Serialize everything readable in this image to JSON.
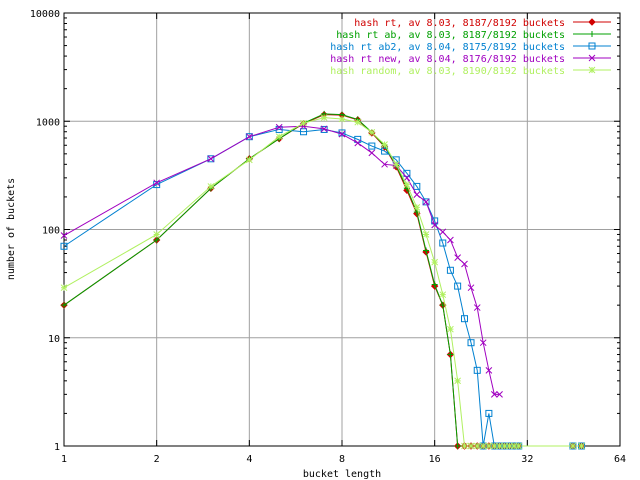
{
  "chart_data": {
    "type": "line",
    "title": "",
    "xlabel": "bucket length",
    "ylabel": "number of buckets",
    "x_scale": "log2",
    "y_scale": "log10",
    "xlim": [
      1,
      64
    ],
    "ylim": [
      1,
      10000
    ],
    "x_ticks": [
      1,
      2,
      4,
      8,
      16,
      32,
      64
    ],
    "x_tick_labels": [
      "1",
      "2",
      "4",
      "8",
      "16",
      "32",
      "64"
    ],
    "y_ticks": [
      1,
      10,
      100,
      1000,
      10000
    ],
    "y_tick_labels": [
      "1",
      "10",
      "100",
      "1000",
      "10000"
    ],
    "grid": true,
    "legend_position": "top-right",
    "series": [
      {
        "name": "hash rt, av 8.03, 8187/8192 buckets",
        "color": "#d00000",
        "marker": "diamond",
        "x": [
          1,
          2,
          3,
          4,
          5,
          6,
          7,
          8,
          9,
          10,
          11,
          12,
          13,
          14,
          15,
          16,
          17,
          18,
          19,
          20,
          21,
          22,
          23,
          24,
          25,
          26,
          27,
          28,
          29,
          30,
          45,
          48
        ],
        "y": [
          20,
          80,
          240,
          450,
          690,
          950,
          1150,
          1140,
          1030,
          780,
          580,
          380,
          230,
          140,
          62,
          30,
          20,
          7,
          1,
          1,
          1,
          1,
          1,
          1,
          1,
          1,
          1,
          1,
          1,
          1,
          1,
          1
        ]
      },
      {
        "name": "hash rt ab, av 8.03, 8187/8192 buckets",
        "color": "#00a000",
        "marker": "plus",
        "x": [
          1,
          2,
          3,
          4,
          5,
          6,
          7,
          8,
          9,
          10,
          11,
          12,
          13,
          14,
          15,
          16,
          17,
          18,
          19,
          20,
          21,
          22,
          23,
          24,
          25,
          26,
          27,
          28,
          29,
          30,
          45,
          48
        ],
        "y": [
          20,
          80,
          240,
          450,
          690,
          960,
          1170,
          1150,
          1040,
          790,
          590,
          390,
          240,
          145,
          64,
          31,
          20,
          7,
          1,
          1,
          1,
          1,
          1,
          1,
          1,
          1,
          1,
          1,
          1,
          1,
          1,
          1
        ]
      },
      {
        "name": "hash rt ab2, av 8.04, 8175/8192 buckets",
        "color": "#0080d0",
        "marker": "square",
        "x": [
          1,
          2,
          3,
          4,
          5,
          6,
          7,
          8,
          9,
          10,
          11,
          12,
          13,
          14,
          15,
          16,
          17,
          18,
          19,
          20,
          21,
          22,
          23,
          24,
          25,
          26,
          27,
          28,
          29,
          30,
          45,
          48
        ],
        "y": [
          70,
          260,
          450,
          720,
          840,
          800,
          840,
          780,
          680,
          590,
          530,
          440,
          330,
          250,
          180,
          120,
          75,
          42,
          30,
          15,
          9,
          5,
          1,
          2,
          1,
          1,
          1,
          1,
          1,
          1,
          1,
          1
        ]
      },
      {
        "name": "hash rt new, av 8.04, 8176/8192 buckets",
        "color": "#a000c0",
        "marker": "cross",
        "x": [
          1,
          2,
          3,
          4,
          5,
          6,
          7,
          8,
          9,
          10,
          11,
          12,
          13,
          14,
          15,
          16,
          17,
          18,
          19,
          20,
          21,
          22,
          23,
          24,
          25,
          26
        ],
        "y": [
          88,
          270,
          450,
          720,
          880,
          900,
          850,
          760,
          630,
          510,
          400,
          390,
          300,
          210,
          180,
          110,
          95,
          80,
          55,
          48,
          29,
          19,
          9,
          5,
          3,
          3
        ]
      },
      {
        "name": "hash random, av 8.03, 8190/8192 buckets",
        "color": "#b0f060",
        "marker": "star",
        "x": [
          1,
          2,
          3,
          4,
          5,
          6,
          7,
          8,
          9,
          10,
          11,
          12,
          13,
          14,
          15,
          16,
          17,
          18,
          19,
          20,
          21,
          22,
          23,
          24,
          25,
          26,
          27,
          28,
          29,
          30,
          45,
          48
        ],
        "y": [
          29,
          90,
          250,
          440,
          720,
          960,
          1080,
          1050,
          980,
          790,
          610,
          400,
          260,
          160,
          90,
          50,
          25,
          12,
          4,
          1,
          1,
          1,
          1,
          1,
          1,
          1,
          1,
          1,
          1,
          1,
          1,
          1
        ]
      }
    ]
  }
}
